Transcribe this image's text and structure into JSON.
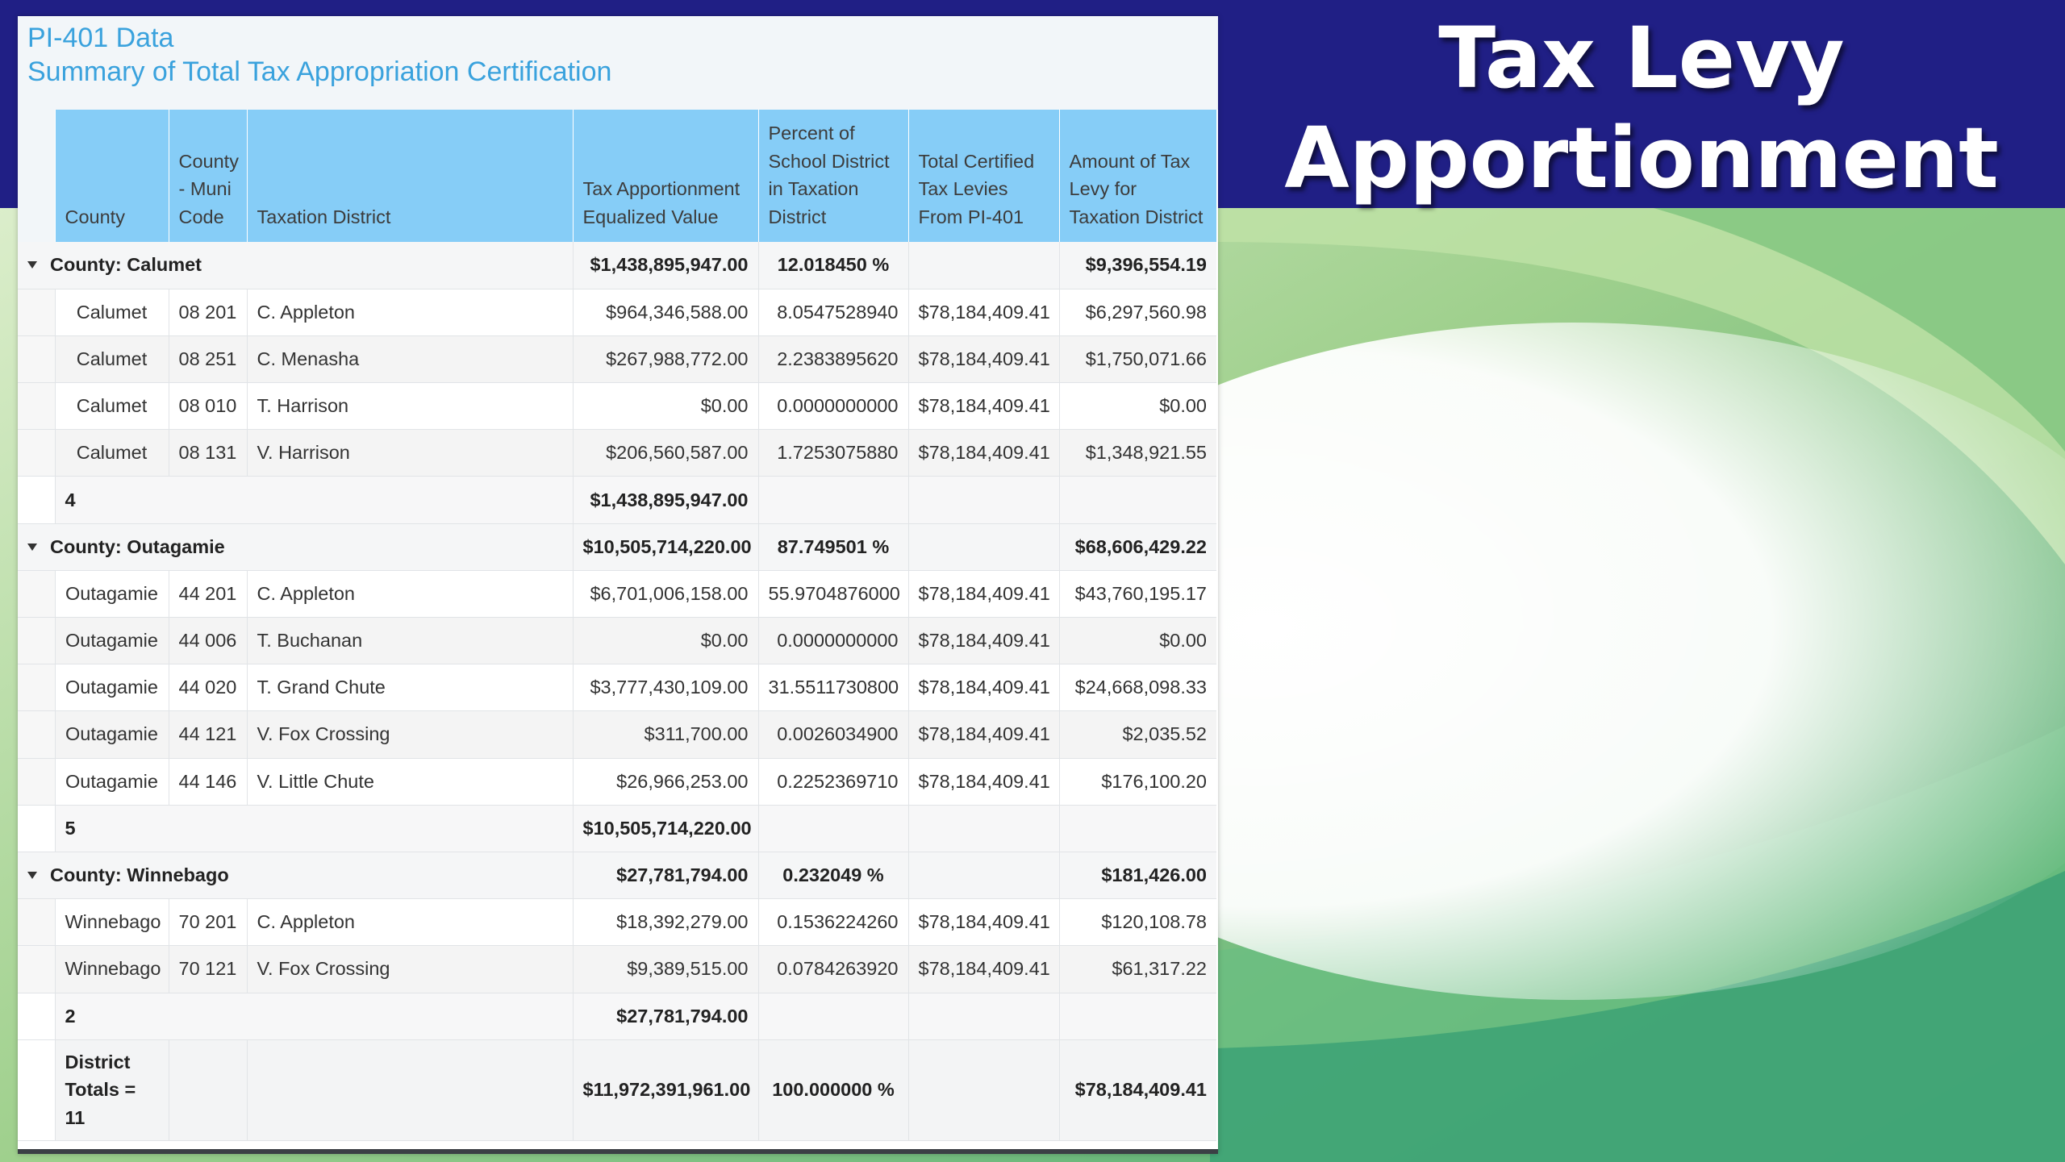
{
  "slide": {
    "title_line1": "Tax Levy",
    "title_line2": "Apportionment",
    "colors": {
      "banner": "#201f85",
      "header": "#86cdf7",
      "title_text": "#3aa2dd"
    }
  },
  "report": {
    "title": "PI-401 Data",
    "subtitle": "Summary of Total Tax Appropriation Certification",
    "columns": {
      "county": "County",
      "code": "County - Muni Code",
      "district": "Taxation District",
      "equalized": "Tax Apportionment Equalized Value",
      "percent": "Percent of School District in Taxation District",
      "total_levies": "Total Certified Tax Levies From PI-401",
      "amount": "Amount of Tax Levy for Taxation District"
    },
    "groups": [
      {
        "label": "County: Calumet",
        "equalized": "$1,438,895,947.00",
        "percent": "12.018450 %",
        "amount": "$9,396,554.19",
        "count": "4",
        "count_equalized": "$1,438,895,947.00",
        "rows": [
          {
            "county": "Calumet",
            "code": "08 201",
            "district": "C. Appleton",
            "equalized": "$964,346,588.00",
            "percent": "8.0547528940",
            "total": "$78,184,409.41",
            "amount": "$6,297,560.98"
          },
          {
            "county": "Calumet",
            "code": "08 251",
            "district": "C. Menasha",
            "equalized": "$267,988,772.00",
            "percent": "2.2383895620",
            "total": "$78,184,409.41",
            "amount": "$1,750,071.66"
          },
          {
            "county": "Calumet",
            "code": "08 010",
            "district": "T. Harrison",
            "equalized": "$0.00",
            "percent": "0.0000000000",
            "total": "$78,184,409.41",
            "amount": "$0.00"
          },
          {
            "county": "Calumet",
            "code": "08 131",
            "district": "V. Harrison",
            "equalized": "$206,560,587.00",
            "percent": "1.7253075880",
            "total": "$78,184,409.41",
            "amount": "$1,348,921.55"
          }
        ]
      },
      {
        "label": "County: Outagamie",
        "equalized": "$10,505,714,220.00",
        "percent": "87.749501 %",
        "amount": "$68,606,429.22",
        "count": "5",
        "count_equalized": "$10,505,714,220.00",
        "rows": [
          {
            "county": "Outagamie",
            "code": "44 201",
            "district": "C. Appleton",
            "equalized": "$6,701,006,158.00",
            "percent": "55.9704876000",
            "total": "$78,184,409.41",
            "amount": "$43,760,195.17"
          },
          {
            "county": "Outagamie",
            "code": "44 006",
            "district": "T. Buchanan",
            "equalized": "$0.00",
            "percent": "0.0000000000",
            "total": "$78,184,409.41",
            "amount": "$0.00"
          },
          {
            "county": "Outagamie",
            "code": "44 020",
            "district": "T. Grand Chute",
            "equalized": "$3,777,430,109.00",
            "percent": "31.5511730800",
            "total": "$78,184,409.41",
            "amount": "$24,668,098.33"
          },
          {
            "county": "Outagamie",
            "code": "44 121",
            "district": "V. Fox Crossing",
            "equalized": "$311,700.00",
            "percent": "0.0026034900",
            "total": "$78,184,409.41",
            "amount": "$2,035.52"
          },
          {
            "county": "Outagamie",
            "code": "44 146",
            "district": "V. Little Chute",
            "equalized": "$26,966,253.00",
            "percent": "0.2252369710",
            "total": "$78,184,409.41",
            "amount": "$176,100.20"
          }
        ]
      },
      {
        "label": "County: Winnebago",
        "equalized": "$27,781,794.00",
        "percent": "0.232049 %",
        "amount": "$181,426.00",
        "count": "2",
        "count_equalized": "$27,781,794.00",
        "rows": [
          {
            "county": "Winnebago",
            "code": "70 201",
            "district": "C. Appleton",
            "equalized": "$18,392,279.00",
            "percent": "0.1536224260",
            "total": "$78,184,409.41",
            "amount": "$120,108.78"
          },
          {
            "county": "Winnebago",
            "code": "70 121",
            "district": "V. Fox Crossing",
            "equalized": "$9,389,515.00",
            "percent": "0.0784263920",
            "total": "$78,184,409.41",
            "amount": "$61,317.22"
          }
        ]
      }
    ],
    "totals": {
      "label": "District Totals = 11",
      "equalized": "$11,972,391,961.00",
      "percent": "100.000000 %",
      "amount": "$78,184,409.41"
    }
  }
}
